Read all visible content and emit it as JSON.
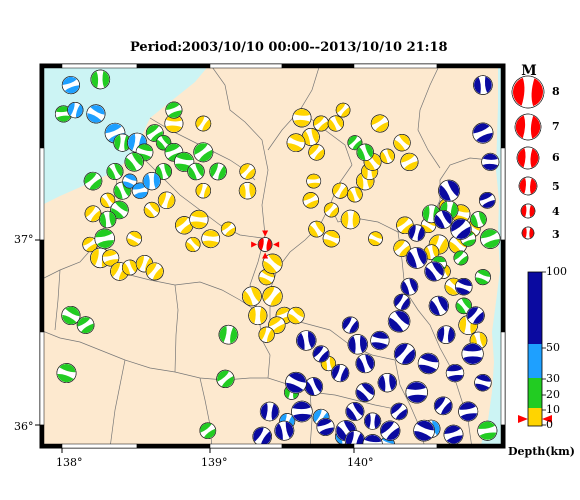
{
  "title": "Period:2003/10/10 00:00--2013/10/10 21:18",
  "axes": {
    "lon_labels": [
      "138°",
      "139°",
      "140°"
    ],
    "lat_labels": [
      "37°",
      "36°"
    ]
  },
  "magnitude_legend": {
    "heading": "M",
    "labels": [
      "8",
      "7",
      "6",
      "5",
      "4",
      "3"
    ]
  },
  "depth_legend": {
    "labels": [
      "100",
      "50",
      "30",
      "20",
      "10",
      "0"
    ],
    "unit": "Depth(km)",
    "colors": [
      "#0a0aa0",
      "#1ea0ff",
      "#22cc22",
      "#ffd400"
    ]
  },
  "colors": {
    "land": "#fde9cf",
    "sea": "#ccf4f4",
    "highlight": "#ff0000"
  },
  "featured_event": {
    "lon": 139.37,
    "lat": 36.92,
    "mag": 4.8,
    "color": "red"
  },
  "events": {
    "deep": [
      [
        140.85,
        37.5
      ],
      [
        140.9,
        37.35
      ],
      [
        140.62,
        37.2
      ],
      [
        140.58,
        37.05
      ],
      [
        140.7,
        37.0
      ],
      [
        140.4,
        36.98
      ],
      [
        140.72,
        36.7
      ],
      [
        140.55,
        36.6
      ],
      [
        140.8,
        36.55
      ],
      [
        140.6,
        36.45
      ],
      [
        140.78,
        36.35
      ],
      [
        140.48,
        36.3
      ],
      [
        140.66,
        36.25
      ],
      [
        140.85,
        36.2
      ],
      [
        140.4,
        36.15
      ],
      [
        140.58,
        36.08
      ],
      [
        140.75,
        36.05
      ],
      [
        140.28,
        36.05
      ],
      [
        140.45,
        35.95
      ],
      [
        140.65,
        35.93
      ],
      [
        140.22,
        35.95
      ],
      [
        140.1,
        36.0
      ],
      [
        139.98,
        36.05
      ],
      [
        139.92,
        35.95
      ],
      [
        140.05,
        36.15
      ],
      [
        140.2,
        36.2
      ],
      [
        140.32,
        36.35
      ],
      [
        139.88,
        36.25
      ],
      [
        139.75,
        36.35
      ],
      [
        139.7,
        36.18
      ],
      [
        139.62,
        36.05
      ],
      [
        139.5,
        35.95
      ],
      [
        139.4,
        36.05
      ],
      [
        139.35,
        35.92
      ],
      [
        139.78,
        35.97
      ],
      [
        139.98,
        35.9
      ],
      [
        140.1,
        35.88
      ],
      [
        140.85,
        37.75
      ],
      [
        140.88,
        37.15
      ],
      [
        140.05,
        36.3
      ],
      [
        140.0,
        36.4
      ],
      [
        139.95,
        36.5
      ],
      [
        140.15,
        36.42
      ],
      [
        140.28,
        36.52
      ],
      [
        140.35,
        36.7
      ],
      [
        140.4,
        36.85
      ],
      [
        139.58,
        36.2
      ],
      [
        140.52,
        36.78
      ],
      [
        140.3,
        36.62
      ],
      [
        139.65,
        36.42
      ]
    ],
    "mid": [
      [
        138.45,
        37.25
      ],
      [
        138.52,
        37.2
      ],
      [
        138.6,
        37.25
      ],
      [
        138.08,
        37.62
      ],
      [
        139.9,
        35.92
      ],
      [
        140.2,
        35.88
      ],
      [
        140.5,
        35.96
      ],
      [
        139.75,
        36.02
      ],
      [
        139.52,
        36.0
      ]
    ],
    "shallow_green": [
      [
        138.62,
        37.5
      ],
      [
        138.68,
        37.45
      ],
      [
        138.75,
        37.4
      ],
      [
        138.82,
        37.35
      ],
      [
        138.9,
        37.3
      ],
      [
        138.95,
        37.4
      ],
      [
        138.55,
        37.4
      ],
      [
        138.48,
        37.35
      ],
      [
        138.4,
        37.2
      ],
      [
        138.38,
        37.1
      ],
      [
        138.3,
        37.05
      ],
      [
        138.28,
        36.95
      ],
      [
        138.2,
        37.25
      ],
      [
        138.05,
        36.55
      ],
      [
        138.15,
        36.5
      ],
      [
        138.02,
        36.25
      ],
      [
        139.98,
        37.45
      ],
      [
        140.05,
        37.4
      ],
      [
        140.5,
        37.08
      ],
      [
        140.62,
        37.1
      ],
      [
        140.75,
        36.95
      ],
      [
        140.82,
        37.05
      ],
      [
        140.9,
        36.95
      ],
      [
        140.7,
        36.85
      ],
      [
        140.55,
        36.82
      ],
      [
        140.85,
        36.75
      ],
      [
        140.72,
        36.6
      ],
      [
        139.1,
        36.22
      ],
      [
        139.12,
        36.45
      ],
      [
        138.98,
        35.95
      ],
      [
        140.88,
        35.95
      ],
      [
        139.55,
        36.15
      ],
      [
        139.05,
        37.3
      ],
      [
        138.75,
        37.62
      ],
      [
        138.68,
        37.3
      ]
    ],
    "shallow_yellow": [
      [
        138.18,
        36.92
      ],
      [
        138.25,
        36.85
      ],
      [
        138.32,
        36.85
      ],
      [
        138.38,
        36.78
      ],
      [
        138.45,
        36.8
      ],
      [
        138.55,
        36.82
      ],
      [
        138.62,
        36.78
      ],
      [
        138.48,
        36.95
      ],
      [
        138.2,
        37.08
      ],
      [
        138.3,
        37.15
      ],
      [
        138.6,
        37.1
      ],
      [
        138.7,
        37.15
      ],
      [
        138.82,
        37.02
      ],
      [
        138.92,
        37.05
      ],
      [
        138.95,
        37.2
      ],
      [
        139.25,
        37.2
      ],
      [
        139.12,
        37.0
      ],
      [
        139.0,
        36.95
      ],
      [
        139.42,
        36.65
      ],
      [
        139.5,
        36.55
      ],
      [
        139.58,
        36.55
      ],
      [
        139.45,
        36.5
      ],
      [
        139.38,
        36.45
      ],
      [
        139.32,
        36.55
      ],
      [
        139.38,
        36.75
      ],
      [
        139.28,
        36.65
      ],
      [
        139.42,
        36.82
      ],
      [
        139.62,
        37.58
      ],
      [
        139.68,
        37.48
      ],
      [
        139.72,
        37.4
      ],
      [
        139.75,
        37.55
      ],
      [
        139.58,
        37.45
      ],
      [
        139.85,
        37.55
      ],
      [
        139.9,
        37.62
      ],
      [
        140.15,
        37.55
      ],
      [
        140.2,
        37.38
      ],
      [
        140.3,
        37.45
      ],
      [
        140.35,
        37.35
      ],
      [
        140.48,
        37.02
      ],
      [
        140.55,
        36.92
      ],
      [
        140.6,
        37.12
      ],
      [
        140.7,
        37.08
      ],
      [
        140.68,
        36.92
      ],
      [
        140.78,
        37.0
      ],
      [
        140.5,
        36.88
      ],
      [
        140.58,
        36.78
      ],
      [
        140.65,
        36.7
      ],
      [
        140.75,
        36.5
      ],
      [
        140.82,
        36.42
      ],
      [
        139.68,
        37.15
      ],
      [
        139.82,
        37.1
      ],
      [
        139.88,
        37.2
      ],
      [
        139.95,
        37.05
      ],
      [
        139.98,
        37.18
      ],
      [
        140.05,
        37.25
      ],
      [
        140.08,
        37.3
      ],
      [
        140.32,
        37.02
      ],
      [
        140.12,
        36.95
      ],
      [
        139.82,
        36.95
      ],
      [
        139.72,
        37.0
      ],
      [
        138.75,
        37.55
      ],
      [
        139.25,
        37.3
      ],
      [
        138.88,
        36.92
      ],
      [
        139.8,
        36.3
      ],
      [
        138.95,
        37.55
      ],
      [
        139.7,
        37.25
      ],
      [
        140.3,
        36.9
      ],
      [
        140.1,
        37.35
      ]
    ],
    "nw_sea": [
      [
        138.25,
        37.78
      ],
      [
        138.05,
        37.75
      ],
      [
        138.0,
        37.6
      ],
      [
        138.22,
        37.6
      ],
      [
        138.35,
        37.5
      ],
      [
        138.4,
        37.45
      ],
      [
        138.5,
        37.45
      ],
      [
        138.35,
        37.3
      ]
    ]
  }
}
